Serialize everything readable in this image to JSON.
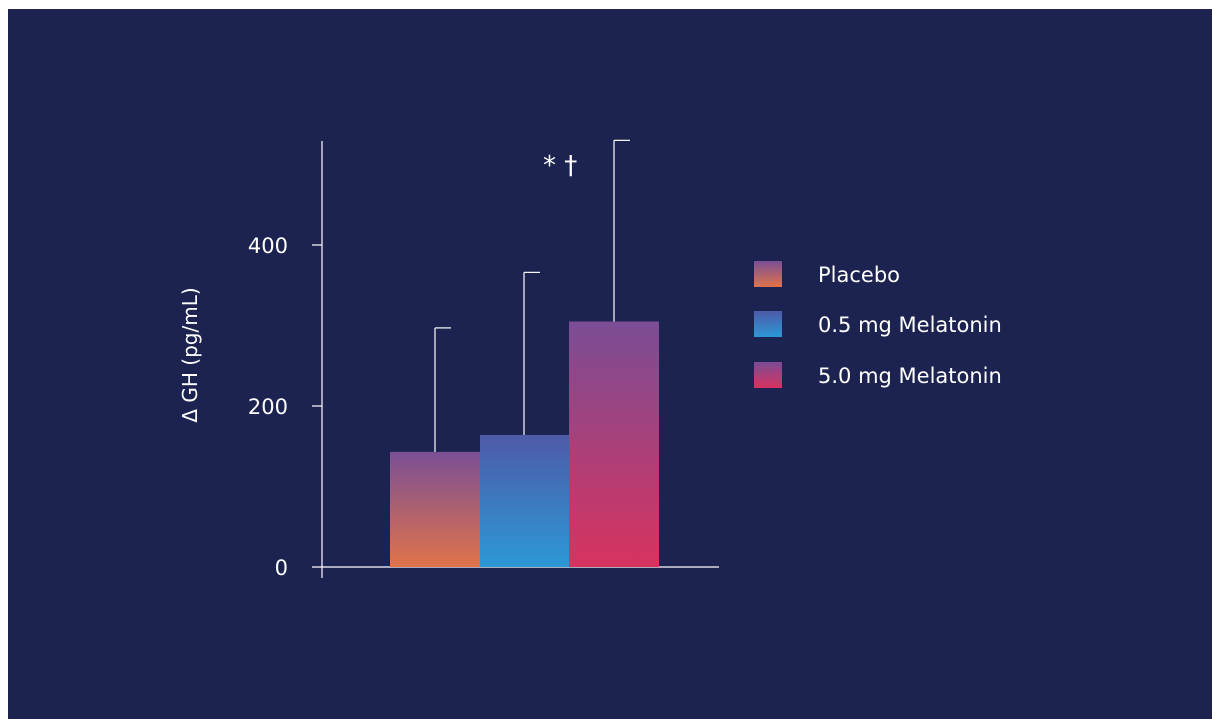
{
  "chart_data": {
    "type": "bar",
    "categories": [
      "Placebo",
      "0.5 mg Melatonin",
      "5.0 mg Melatonin"
    ],
    "series": [
      {
        "values": [
          143,
          164,
          305
        ],
        "error_upper": [
          297,
          366,
          530
        ]
      }
    ],
    "ylabel": "Δ GH (pg/mL)",
    "xlabel": "",
    "title": "",
    "ylim": [
      -5,
      540
    ],
    "yticks": [
      0,
      200,
      400
    ],
    "grid": false,
    "legend": {
      "position": "right",
      "entries": [
        "Placebo",
        "0.5 mg Melatonin",
        "5.0 mg Melatonin"
      ]
    },
    "colors": [
      {
        "top": "#7a4f95",
        "bottom": "#e0734a"
      },
      {
        "top": "#4e5aa8",
        "bottom": "#2c98d6"
      },
      {
        "top": "#7a4d95",
        "bottom": "#d8335f"
      }
    ],
    "annotations": [
      {
        "text": "* †",
        "bar": 2
      }
    ]
  }
}
